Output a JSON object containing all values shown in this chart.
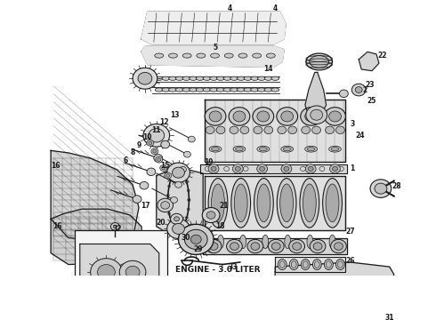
{
  "title": "ENGINE - 3.0 LITER",
  "title_fontsize": 6.5,
  "title_fontweight": "bold",
  "bg_color": "#ffffff",
  "diagram_color": "#1a1a1a",
  "fig_width": 4.9,
  "fig_height": 3.6,
  "dpi": 100
}
